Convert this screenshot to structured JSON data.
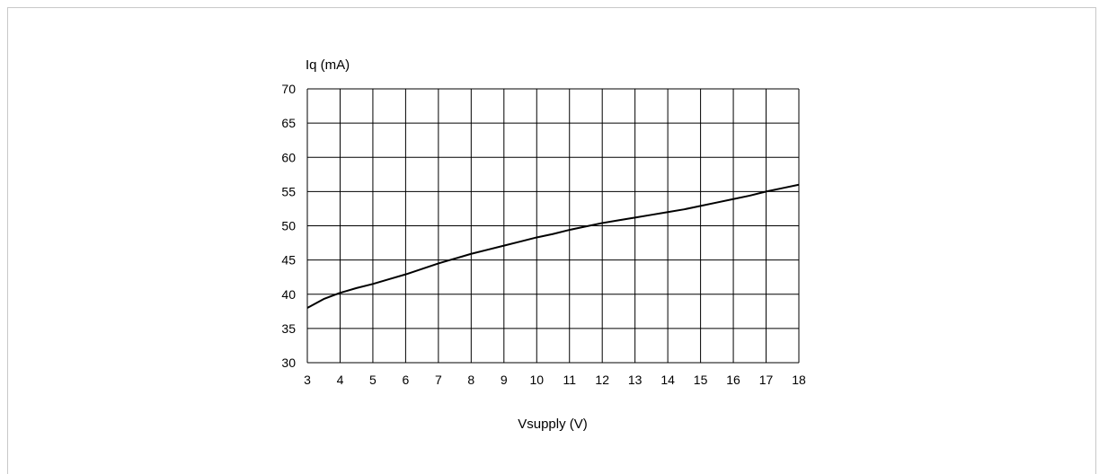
{
  "chart_data": {
    "type": "line",
    "title": "",
    "xlabel": "Vsupply (V)",
    "ylabel": "Iq (mA)",
    "xlim": [
      3,
      18
    ],
    "ylim": [
      30,
      70
    ],
    "grid": true,
    "x_ticks": [
      "3",
      "4",
      "5",
      "6",
      "7",
      "8",
      "9",
      "10",
      "11",
      "12",
      "13",
      "14",
      "15",
      "16",
      "17",
      "18"
    ],
    "y_ticks": [
      "30",
      "35",
      "40",
      "45",
      "50",
      "55",
      "60",
      "65",
      "70"
    ],
    "series": [
      {
        "color": "#000000",
        "x": [
          3,
          3.5,
          4,
          4.5,
          5,
          5.5,
          6,
          6.5,
          7,
          7.5,
          8,
          8.5,
          9,
          9.5,
          10,
          10.5,
          11,
          11.5,
          12,
          12.5,
          13,
          13.5,
          14,
          14.5,
          15,
          15.5,
          16,
          16.5,
          17,
          17.5,
          18
        ],
        "y": [
          38.0,
          39.3,
          40.2,
          40.9,
          41.5,
          42.2,
          42.9,
          43.7,
          44.5,
          45.2,
          45.9,
          46.5,
          47.1,
          47.7,
          48.3,
          48.8,
          49.4,
          49.9,
          50.4,
          50.8,
          51.2,
          51.6,
          52.0,
          52.4,
          52.9,
          53.4,
          53.9,
          54.4,
          55.0,
          55.5,
          56.0
        ]
      }
    ]
  }
}
